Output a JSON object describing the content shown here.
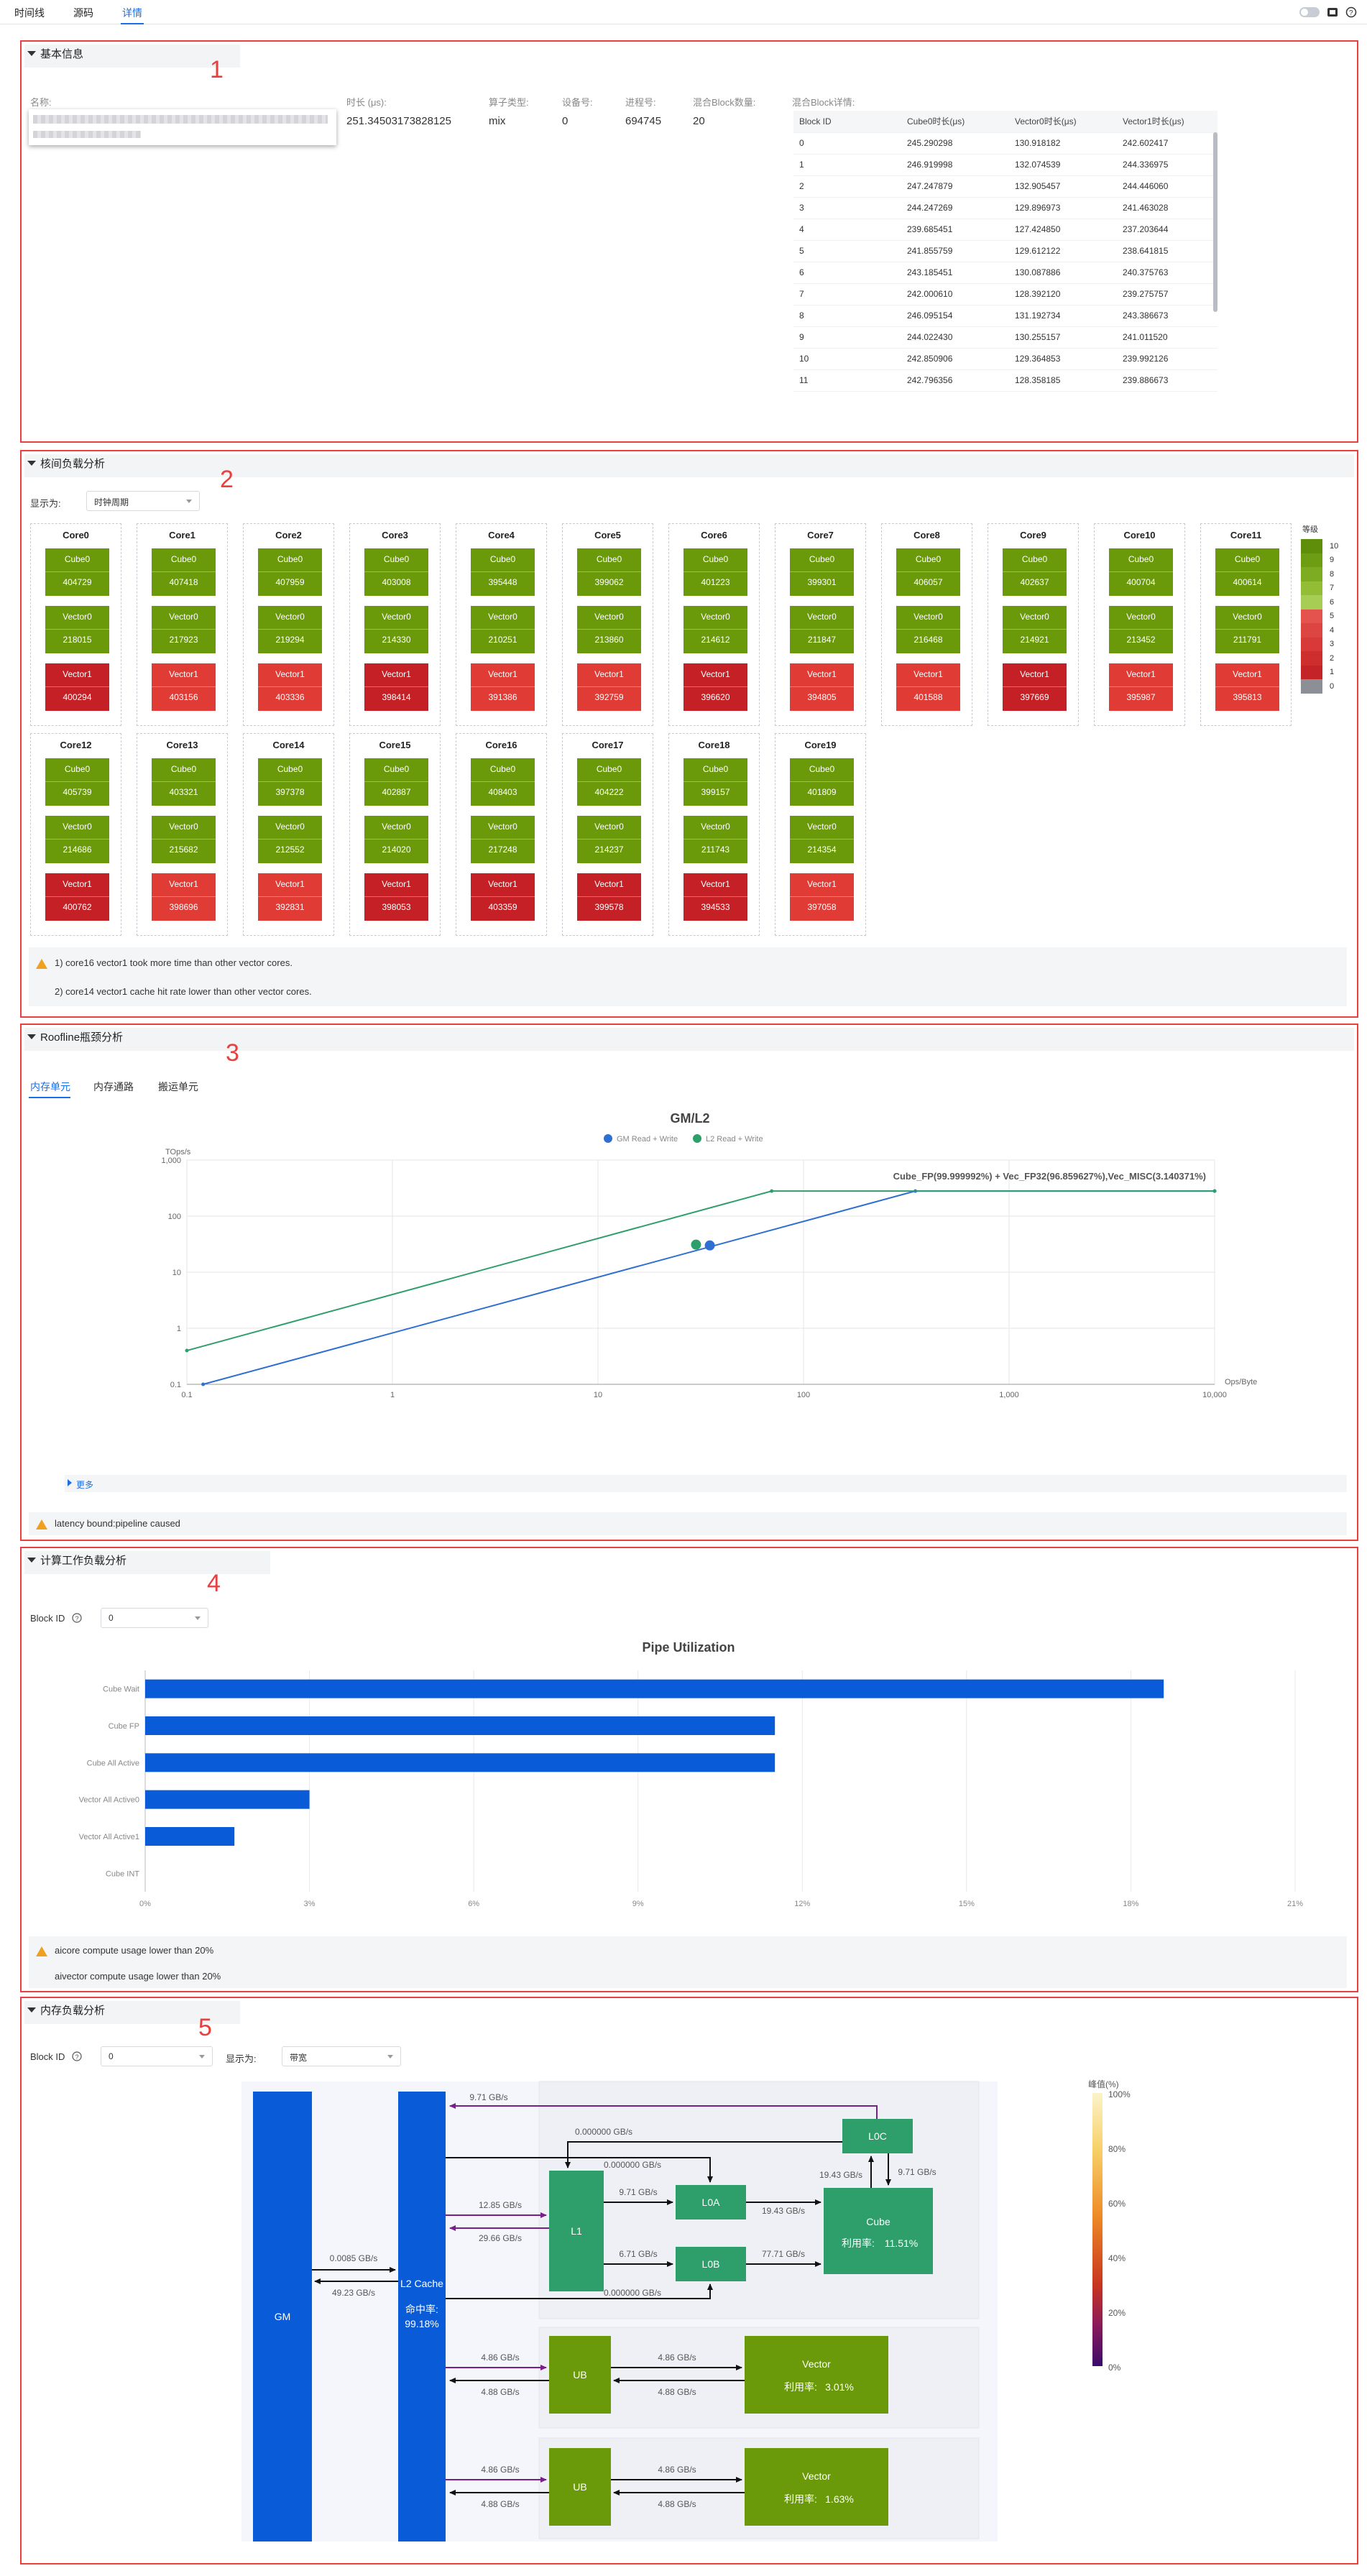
{
  "tabs": [
    {
      "label": "时间线",
      "active": false
    },
    {
      "label": "源码",
      "active": false
    },
    {
      "label": "详情",
      "active": true
    }
  ],
  "annot": [
    "1",
    "2",
    "3",
    "4",
    "5"
  ],
  "s1": {
    "title": "基本信息",
    "name_label": "名称:",
    "fields": [
      {
        "label": "时长 (μs):",
        "value": "251.34503173828125"
      },
      {
        "label": "算子类型:",
        "value": "mix"
      },
      {
        "label": "设备号:",
        "value": "0"
      },
      {
        "label": "进程号:",
        "value": "694745"
      },
      {
        "label": "混合Block数量:",
        "value": "20"
      }
    ],
    "table_label": "混合Block详情:",
    "table_headers": [
      "Block ID",
      "Cube0时长(μs)",
      "Vector0时长(μs)",
      "Vector1时长(μs)"
    ],
    "table_rows": [
      [
        "0",
        "245.290298",
        "130.918182",
        "242.602417"
      ],
      [
        "1",
        "246.919998",
        "132.074539",
        "244.336975"
      ],
      [
        "2",
        "247.247879",
        "132.905457",
        "244.446060"
      ],
      [
        "3",
        "244.247269",
        "129.896973",
        "241.463028"
      ],
      [
        "4",
        "239.685451",
        "127.424850",
        "237.203644"
      ],
      [
        "5",
        "241.855759",
        "129.612122",
        "238.641815"
      ],
      [
        "6",
        "243.185451",
        "130.087886",
        "240.375763"
      ],
      [
        "7",
        "242.000610",
        "128.392120",
        "239.275757"
      ],
      [
        "8",
        "246.095154",
        "131.192734",
        "243.386673"
      ],
      [
        "9",
        "244.022430",
        "130.255157",
        "241.011520"
      ],
      [
        "10",
        "242.850906",
        "129.364853",
        "239.992126"
      ],
      [
        "11",
        "242.796356",
        "128.358185",
        "239.886673"
      ]
    ]
  },
  "s2": {
    "title": "核间负载分析",
    "display_label": "显示为:",
    "display_value": "时钟周期",
    "legend_title": "等级",
    "legend_levels": [
      "10",
      "9",
      "8",
      "7",
      "6",
      "5",
      "4",
      "3",
      "2",
      "1",
      "0"
    ],
    "cores": [
      {
        "name": "Core0",
        "cube": "404729",
        "v0": "218015",
        "v1": "400294"
      },
      {
        "name": "Core1",
        "cube": "407418",
        "v0": "217923",
        "v1": "403156"
      },
      {
        "name": "Core2",
        "cube": "407959",
        "v0": "219294",
        "v1": "403336"
      },
      {
        "name": "Core3",
        "cube": "403008",
        "v0": "214330",
        "v1": "398414"
      },
      {
        "name": "Core4",
        "cube": "395448",
        "v0": "210251",
        "v1": "391386"
      },
      {
        "name": "Core5",
        "cube": "399062",
        "v0": "213860",
        "v1": "392759"
      },
      {
        "name": "Core6",
        "cube": "401223",
        "v0": "214612",
        "v1": "396620"
      },
      {
        "name": "Core7",
        "cube": "399301",
        "v0": "211847",
        "v1": "394805"
      },
      {
        "name": "Core8",
        "cube": "406057",
        "v0": "216468",
        "v1": "401588"
      },
      {
        "name": "Core9",
        "cube": "402637",
        "v0": "214921",
        "v1": "397669"
      },
      {
        "name": "Core10",
        "cube": "400704",
        "v0": "213452",
        "v1": "395987"
      },
      {
        "name": "Core11",
        "cube": "400614",
        "v0": "211791",
        "v1": "395813"
      },
      {
        "name": "Core12",
        "cube": "405739",
        "v0": "214686",
        "v1": "400762"
      },
      {
        "name": "Core13",
        "cube": "403321",
        "v0": "215682",
        "v1": "398696"
      },
      {
        "name": "Core14",
        "cube": "397378",
        "v0": "212552",
        "v1": "392831"
      },
      {
        "name": "Core15",
        "cube": "402887",
        "v0": "214020",
        "v1": "398053"
      },
      {
        "name": "Core16",
        "cube": "408403",
        "v0": "217248",
        "v1": "403359"
      },
      {
        "name": "Core17",
        "cube": "404222",
        "v0": "214237",
        "v1": "399578"
      },
      {
        "name": "Core18",
        "cube": "399157",
        "v0": "211743",
        "v1": "394533"
      },
      {
        "name": "Core19",
        "cube": "401809",
        "v0": "214354",
        "v1": "397058"
      }
    ],
    "unit_labels": {
      "cube": "Cube0",
      "v0": "Vector0",
      "v1": "Vector1"
    },
    "notes": [
      "1) core16 vector1 took more time than other vector cores.",
      "2) core14 vector1 cache hit rate lower than other vector cores."
    ],
    "colors": {
      "green": "#6a9a0a",
      "red_light": "#e13b36",
      "red_dark": "#c52026"
    }
  },
  "s3": {
    "title": "Roofline瓶颈分析",
    "subtabs": [
      "内存单元",
      "内存通路",
      "搬运单元"
    ],
    "more": "更多",
    "note": "latency bound:pipeline caused",
    "chart_data": {
      "type": "line",
      "title": "GM/L2",
      "ylabel": "TOps/s",
      "xlabel": "Ops/Byte",
      "xscale": "log",
      "yscale": "log",
      "xlim": [
        0.1,
        10000
      ],
      "ylim": [
        0.1,
        1000
      ],
      "xticks": [
        "0.1",
        "1",
        "10",
        "100",
        "1,000",
        "10,000"
      ],
      "yticks": [
        "0.1",
        "1",
        "10",
        "100",
        "1,000"
      ],
      "annotation": "Cube_FP(99.999992%) + Vec_FP32(96.859627%),Vec_MISC(3.140371%)",
      "series": [
        {
          "name": "GM Read + Write",
          "color": "#2e6fd1",
          "roof": [
            [
              0.12,
              0.1
            ],
            [
              350,
              280
            ],
            [
              10000,
              280
            ]
          ],
          "point": [
            35,
            30
          ]
        },
        {
          "name": "L2 Read + Write",
          "color": "#2e9e6a",
          "roof": [
            [
              0.1,
              0.4
            ],
            [
              70,
              280
            ],
            [
              10000,
              280
            ]
          ],
          "point": [
            30,
            31
          ]
        }
      ]
    }
  },
  "s4": {
    "title": "计算工作负载分析",
    "block_label": "Block ID",
    "block_value": "0",
    "chart_data": {
      "type": "bar",
      "title": "Pipe Utilization",
      "categories": [
        "Cube Wait",
        "Cube FP",
        "Cube All Active",
        "Vector All Active0",
        "Vector All Active1",
        "Cube INT"
      ],
      "values": [
        18.6,
        11.5,
        11.5,
        3.0,
        1.63,
        0
      ],
      "xlim": [
        0,
        21
      ],
      "xticks": [
        "0%",
        "3%",
        "6%",
        "9%",
        "12%",
        "15%",
        "18%",
        "21%"
      ],
      "color": "#0a5bd7"
    },
    "notes": [
      "aicore compute usage lower than 20%",
      "aivector compute usage lower than 20%"
    ]
  },
  "s5": {
    "title": "内存负载分析",
    "block_label": "Block ID",
    "block_value": "0",
    "display_label": "显示为:",
    "display_value": "带宽",
    "nodes": {
      "gm": "GM",
      "l2": "L2 Cache",
      "l2_hit_label": "命中率:",
      "l2_hit": "99.18%",
      "l1": "L1",
      "l0a": "L0A",
      "l0b": "L0B",
      "l0c": "L0C",
      "cube": "Cube",
      "cube_util_label": "利用率:",
      "cube_util": "11.51%",
      "ub1": "UB",
      "vec1": "Vector",
      "vec1_util": "3.01%",
      "ub2": "UB",
      "vec2": "Vector",
      "vec2_util": "1.63%"
    },
    "bw": {
      "l0c_l2": "9.71 GB/s",
      "l2_l0c_top": "0.000000 GB/s",
      "l2_l0a": "0.000000 GB/s",
      "l2_l1_in": "12.85 GB/s",
      "l1_l2_out": "29.66 GB/s",
      "l1_l0a": "9.71 GB/s",
      "l0a_cube": "19.43 GB/s",
      "cube_l0c": "19.43 GB/s",
      "l0c_cube": "9.71 GB/s",
      "l1_l0b": "6.71 GB/s",
      "l0b_cube": "77.71 GB/s",
      "l2_l0b": "0.000000 GB/s",
      "gm_l2": "0.0085 GB/s",
      "l2_gm": "49.23 GB/s",
      "l2_ub1": "4.86 GB/s",
      "ub1_l2": "4.88 GB/s",
      "ub1_vec1": "4.86 GB/s",
      "vec1_ub1": "4.88 GB/s",
      "l2_ub2": "4.86 GB/s",
      "ub2_l2": "4.88 GB/s",
      "ub2_vec2": "4.86 GB/s",
      "vec2_ub2": "4.88 GB/s"
    },
    "legend_title": "峰值(%)",
    "legend_ticks": [
      "100%",
      "80%",
      "60%",
      "40%",
      "20%",
      "0%"
    ],
    "colors": {
      "blue": "#0a5bd7",
      "teal": "#2e9e6a",
      "olive": "#6a9a0a",
      "purple": "#7a1f8a"
    }
  }
}
